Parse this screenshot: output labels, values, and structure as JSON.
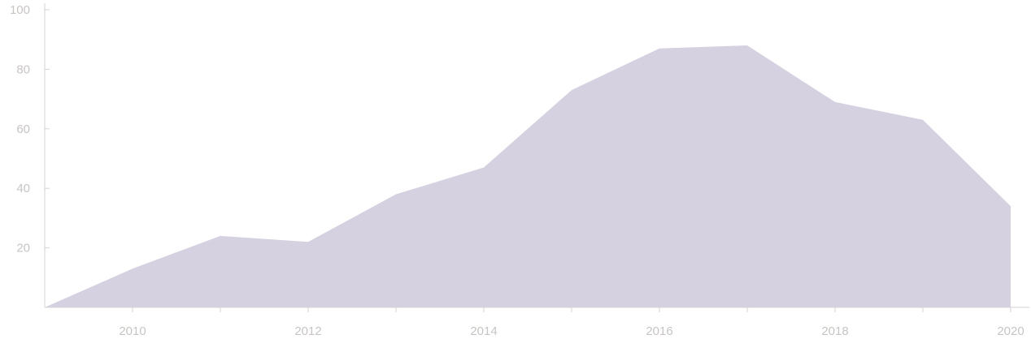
{
  "chart_data": {
    "type": "area",
    "title": "",
    "xlabel": "",
    "ylabel": "",
    "x": [
      2009,
      2010,
      2011,
      2012,
      2013,
      2014,
      2015,
      2016,
      2017,
      2018,
      2019,
      2020
    ],
    "series": [
      {
        "values": [
          0,
          13,
          24,
          22,
          38,
          47,
          73,
          87,
          88,
          69,
          63,
          34
        ]
      }
    ],
    "xlim": [
      2009,
      2020
    ],
    "ylim": [
      0,
      100
    ],
    "x_tick_labels": [
      "2010",
      "2012",
      "2014",
      "2016",
      "2018",
      "2020"
    ],
    "y_tick_labels": [
      "20",
      "40",
      "60",
      "80",
      "100"
    ],
    "grid": false,
    "legend": "none",
    "colors": {
      "fill": "#d5d1e0",
      "axis": "#d6d2d2",
      "tick_text": "#c9c4c4"
    }
  }
}
